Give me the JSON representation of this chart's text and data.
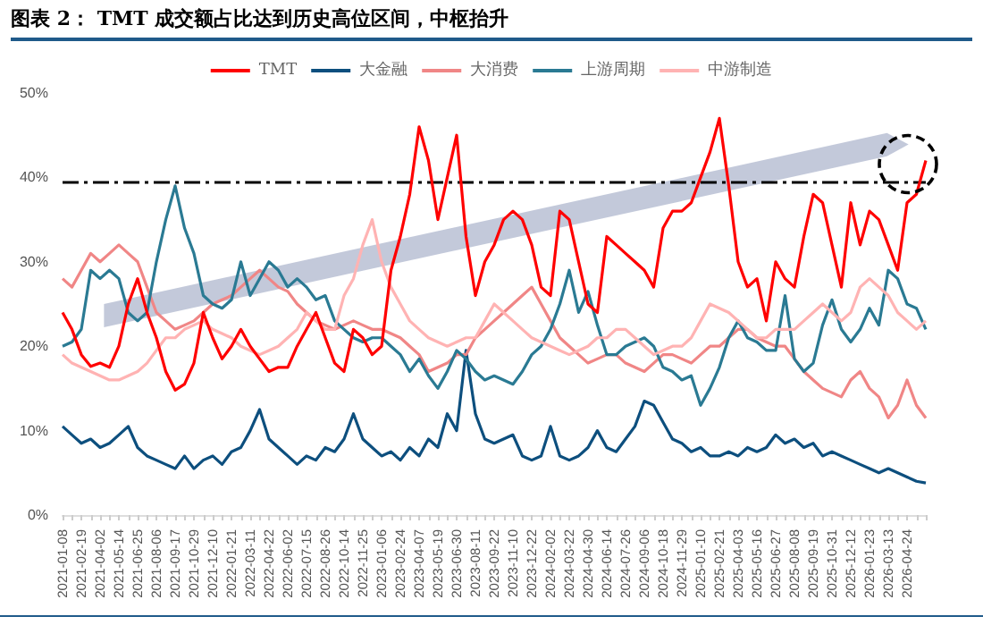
{
  "chart_data": {
    "type": "line",
    "title": "图表 2：  TMT 成交额占比达到历史高位区间，中枢抬升",
    "categories": [
      "2021-01-08",
      null,
      "2021-02-19",
      null,
      "2021-04-02",
      null,
      "2021-05-14",
      null,
      "2021-06-25",
      null,
      "2021-08-06",
      null,
      "2021-09-17",
      null,
      "2021-10-29",
      null,
      "2021-12-10",
      null,
      "2022-01-21",
      null,
      "2022-03-11",
      null,
      "2022-04-22",
      null,
      "2022-06-02",
      null,
      "2022-07-15",
      null,
      "2022-08-26",
      null,
      "2022-10-14",
      null,
      "2022-11-25",
      null,
      "2023-01-06",
      null,
      "2023-02-24",
      null,
      "2023-04-07",
      null,
      "2023-05-19",
      null,
      "2023-06-30",
      null,
      "2023-08-11",
      null,
      "2023-09-22",
      null,
      "2023-11-10",
      null,
      "2023-12-22",
      null,
      "2024-02-02",
      null,
      "2024-03-22",
      null,
      "2024-04-30",
      null,
      "2024-06-14",
      null,
      "2024-07-26",
      null,
      "2024-09-06",
      null,
      "2024-10-18",
      null,
      "2024-11-29",
      null,
      "2025-01-10",
      null,
      "2025-02-21",
      null,
      "2025-04-03",
      null,
      "2025-05-16",
      null,
      "2025-06-27",
      null,
      "2025-08-08",
      null,
      "2025-09-19",
      null,
      "2025-10-31",
      null,
      "2025-12-12",
      null,
      "2026-01-23",
      null,
      "2026-03-13",
      null,
      "2026-04-24",
      null,
      null
    ],
    "series": [
      {
        "name": "TMT",
        "color": "#ff0000",
        "values": [
          24,
          22,
          19,
          17.6,
          18,
          17.5,
          20,
          25,
          28,
          24,
          21,
          17,
          14.8,
          15.5,
          18,
          24,
          21,
          18.5,
          20,
          22,
          20,
          18.5,
          17,
          17.5,
          17.5,
          20,
          22,
          24,
          21,
          18,
          17,
          22,
          21,
          19,
          20,
          29,
          33,
          38,
          46,
          42,
          35,
          40,
          45,
          33,
          26,
          30,
          32,
          35,
          36,
          35,
          32,
          27,
          26,
          36,
          35,
          30,
          25,
          24,
          33,
          32,
          31,
          30,
          29,
          27,
          34,
          36,
          36,
          37,
          40,
          43,
          47,
          39,
          30,
          27,
          28,
          23,
          30,
          28,
          27,
          33,
          38,
          37,
          32,
          27,
          37,
          32,
          36,
          35,
          32,
          29,
          37,
          38,
          42
        ]
      },
      {
        "name": "大金融",
        "color": "#0d4f7e",
        "values": [
          10.5,
          9.5,
          8.5,
          9,
          8,
          8.5,
          9.5,
          10.5,
          8,
          7,
          6.5,
          6,
          5.5,
          7,
          5.5,
          6.5,
          7,
          6,
          7.5,
          8,
          10,
          12.5,
          9,
          8,
          7,
          6,
          7,
          6.5,
          8,
          7.5,
          9,
          12,
          9,
          8,
          7,
          7.5,
          6.5,
          8,
          7,
          9,
          8,
          12,
          10,
          19.5,
          12,
          9,
          8.5,
          9,
          9.5,
          7,
          6.5,
          7,
          10.5,
          7,
          6.5,
          7,
          8,
          10,
          8,
          7.5,
          9,
          10.5,
          13.5,
          13,
          11,
          9,
          8.5,
          7.5,
          8,
          7,
          7,
          7.5,
          7,
          8,
          7.5,
          8,
          9.5,
          8.5,
          9,
          8,
          8.5,
          7,
          7.5,
          7,
          6.5,
          6,
          5.5,
          5,
          5.5,
          5,
          4.5,
          4,
          3.8
        ]
      },
      {
        "name": "大消费",
        "color": "#f08686",
        "values": [
          28,
          27,
          29,
          31,
          30,
          31,
          32,
          31,
          30,
          27,
          24,
          23,
          22,
          22.5,
          23,
          24,
          25,
          25.5,
          26,
          27,
          28,
          29,
          28,
          27,
          26.5,
          25,
          24,
          23,
          22.5,
          22,
          22.5,
          23,
          22.5,
          22,
          22,
          21.5,
          21,
          20,
          19,
          17,
          17.5,
          18,
          19,
          19,
          21,
          22,
          23,
          24,
          25,
          26,
          27,
          25,
          23,
          21,
          20,
          19,
          18,
          18.5,
          19,
          19,
          18,
          17.5,
          17,
          18,
          19,
          19,
          18.5,
          18,
          19,
          20,
          20,
          21,
          22,
          22,
          21,
          20.5,
          20,
          20,
          18.5,
          17,
          16,
          15,
          14.5,
          14,
          16,
          17,
          15,
          14,
          11.5,
          13,
          16,
          13,
          11.5
        ]
      },
      {
        "name": "上游周期",
        "color": "#2a7a93",
        "values": [
          20,
          20.5,
          22,
          29,
          28,
          29,
          28,
          24,
          23,
          24,
          30,
          35,
          39,
          34,
          31,
          26,
          25,
          24.5,
          25.5,
          30,
          26,
          28,
          30,
          29,
          27,
          28,
          27,
          25.5,
          26,
          23,
          22,
          21,
          20.5,
          21,
          21,
          20,
          19,
          17,
          18.5,
          16.5,
          15,
          17,
          19.5,
          18.5,
          17,
          16,
          16.5,
          16,
          15.5,
          17,
          19,
          20,
          22,
          25,
          29,
          24,
          26.5,
          22.5,
          19,
          19,
          20,
          20.5,
          21,
          20,
          17.5,
          17,
          16,
          16.5,
          13,
          15,
          17.5,
          21,
          23,
          21,
          20.5,
          19.5,
          19.5,
          26,
          18.5,
          17,
          18,
          22.5,
          25.5,
          22,
          20.5,
          22,
          24.5,
          22.5,
          29,
          28,
          25,
          24.5,
          22
        ]
      },
      {
        "name": "中游制造",
        "color": "#ffb3b3",
        "values": [
          19,
          18,
          17.5,
          17,
          16.5,
          16,
          16,
          16.5,
          17,
          18,
          19.5,
          21,
          21,
          22,
          22.5,
          23,
          22,
          21.5,
          21,
          20,
          19.5,
          19,
          19.5,
          20,
          21,
          22,
          24,
          23,
          22,
          22,
          26,
          28,
          32,
          35,
          30,
          27,
          25,
          23,
          22,
          21,
          20.5,
          20,
          20.5,
          21,
          21,
          23,
          25,
          24,
          23,
          22,
          21,
          20.5,
          20,
          19.5,
          19,
          19.5,
          20,
          21,
          21,
          22,
          22,
          21,
          20,
          19,
          19.5,
          20,
          20,
          21,
          23,
          25,
          24.5,
          24,
          23,
          22,
          21,
          21,
          22,
          22,
          22,
          23,
          24,
          25,
          24,
          23,
          24,
          27,
          28,
          27,
          26,
          24,
          23,
          22,
          23
        ]
      }
    ],
    "ylim": [
      0,
      50
    ],
    "yticks": [
      {
        "value": 0,
        "label": "0%"
      },
      {
        "value": 10,
        "label": "10%"
      },
      {
        "value": 20,
        "label": "20%"
      },
      {
        "value": 30,
        "label": "30%"
      },
      {
        "value": 40,
        "label": "40%"
      },
      {
        "value": 50,
        "label": "50%"
      }
    ],
    "ref_lines": [
      {
        "axis": "y",
        "value": 39.5,
        "color": "#000000",
        "line_style": "dashed"
      }
    ],
    "legend": "top",
    "marker": "none",
    "line_style": "solid",
    "grid": false
  }
}
